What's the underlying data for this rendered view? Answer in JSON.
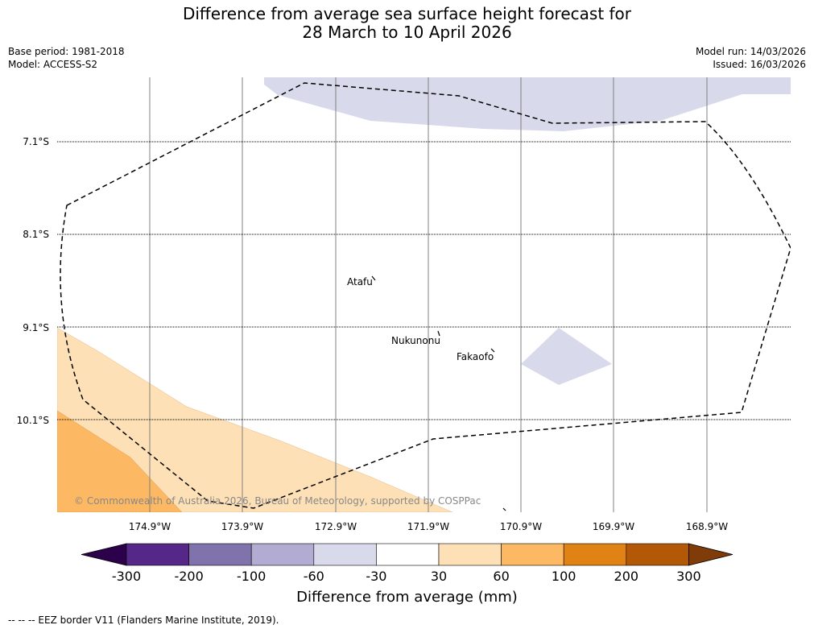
{
  "title": {
    "line1": "Difference from average sea surface height forecast for",
    "line2": "28 March to 10 April 2026"
  },
  "meta": {
    "base_period": "Base period: 1981-2018",
    "model": "Model: ACCESS-S2",
    "model_run": "Model run: 14/03/2026",
    "issued": "Issued: 16/03/2026"
  },
  "latitudes": [
    "7.1°S",
    "8.1°S",
    "9.1°S",
    "10.1°S"
  ],
  "longitudes": [
    "174.9°W",
    "173.9°W",
    "172.9°W",
    "171.9°W",
    "170.9°W",
    "169.9°W",
    "168.9°W"
  ],
  "islands": {
    "atafu": "Atafu",
    "nukunonu": "Nukunonu",
    "fakaofo": "Fakaofo"
  },
  "copyright": "© Commonwealth of Australia 2026, Bureau of Meteorology, supported by COSPPac",
  "colorbar": {
    "ticks": [
      "-300",
      "-200",
      "-100",
      "-60",
      "-30",
      "30",
      "60",
      "100",
      "200",
      "300"
    ],
    "colors": [
      "#2d004b",
      "#542788",
      "#8073ac",
      "#b2abd2",
      "#d8daeb",
      "#ffffff",
      "#fee0b6",
      "#fdb863",
      "#e08214",
      "#b35806",
      "#7f3b08"
    ],
    "label": "Difference from average (mm)"
  },
  "eez_note": "--  --  -- EEZ border V11 (Flanders Marine Institute, 2019)."
}
